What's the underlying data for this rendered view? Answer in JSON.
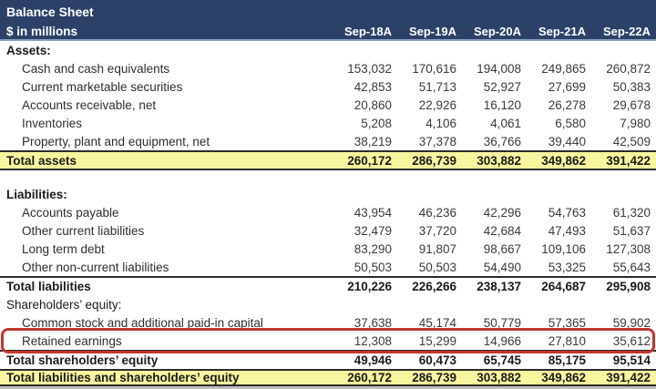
{
  "header": {
    "title": "Balance Sheet",
    "subtitle": "$ in millions",
    "columns": [
      "Sep-18A",
      "Sep-19A",
      "Sep-20A",
      "Sep-21A",
      "Sep-22A"
    ]
  },
  "colors": {
    "header_background": "#2B4168",
    "header_text": "#FFFFFF",
    "total_row_highlight": "#F7F5A0",
    "annotation_box": "#C0362C",
    "rule_lines": "#2B2B2B"
  },
  "annotation": {
    "target_row": "Retained earnings",
    "shape": "red-rounded-box"
  },
  "table": {
    "columns": [
      "Sep-18A",
      "Sep-19A",
      "Sep-20A",
      "Sep-21A",
      "Sep-22A"
    ],
    "rows": [
      {
        "label": "Assets:",
        "style": "section",
        "values": null
      },
      {
        "label": "Cash and cash equivalents",
        "style": "item",
        "values": [
          "153,032",
          "170,616",
          "194,008",
          "249,865",
          "260,872"
        ]
      },
      {
        "label": "Current marketable securities",
        "style": "item",
        "values": [
          "42,853",
          "51,713",
          "52,927",
          "27,699",
          "50,383"
        ]
      },
      {
        "label": "Accounts receivable, net",
        "style": "item",
        "values": [
          "20,860",
          "22,926",
          "16,120",
          "26,278",
          "29,678"
        ]
      },
      {
        "label": "Inventories",
        "style": "item",
        "values": [
          "5,208",
          "4,106",
          "4,061",
          "6,580",
          "7,980"
        ]
      },
      {
        "label": "Property, plant and equipment, net",
        "style": "item",
        "values": [
          "38,219",
          "37,378",
          "36,766",
          "39,440",
          "42,509"
        ]
      },
      {
        "label": "Total assets",
        "style": "grand",
        "values": [
          "260,172",
          "286,739",
          "303,882",
          "349,862",
          "391,422"
        ]
      },
      {
        "style": "gap"
      },
      {
        "label": "Liabilities:",
        "style": "section",
        "values": null
      },
      {
        "label": "Accounts payable",
        "style": "item",
        "values": [
          "43,954",
          "46,236",
          "42,296",
          "54,763",
          "61,320"
        ]
      },
      {
        "label": "Other current liabilities",
        "style": "item",
        "values": [
          "32,479",
          "37,720",
          "42,684",
          "47,493",
          "51,637"
        ]
      },
      {
        "label": "Long term debt",
        "style": "item",
        "values": [
          "83,290",
          "91,807",
          "98,667",
          "109,106",
          "127,308"
        ]
      },
      {
        "label": "Other non-current liabilities",
        "style": "item",
        "values": [
          "50,503",
          "50,503",
          "54,490",
          "53,325",
          "55,643"
        ]
      },
      {
        "label": "Total liabilities",
        "style": "total",
        "values": [
          "210,226",
          "226,266",
          "238,137",
          "264,687",
          "295,908"
        ]
      },
      {
        "label": "Shareholders’ equity:",
        "style": "section-light",
        "values": null
      },
      {
        "label": "Common stock and additional paid-in capital",
        "style": "item",
        "values": [
          "37,638",
          "45,174",
          "50,779",
          "57,365",
          "59,902"
        ]
      },
      {
        "label": "Retained earnings",
        "style": "item",
        "annotated": true,
        "values": [
          "12,308",
          "15,299",
          "14,966",
          "27,810",
          "35,612"
        ]
      },
      {
        "label": "Total shareholders’ equity",
        "style": "total",
        "values": [
          "49,946",
          "60,473",
          "65,745",
          "85,175",
          "95,514"
        ]
      },
      {
        "label": "Total liabilities and shareholders’ equity",
        "style": "grand-last",
        "values": [
          "260,172",
          "286,739",
          "303,882",
          "349,862",
          "391,422"
        ]
      }
    ]
  }
}
